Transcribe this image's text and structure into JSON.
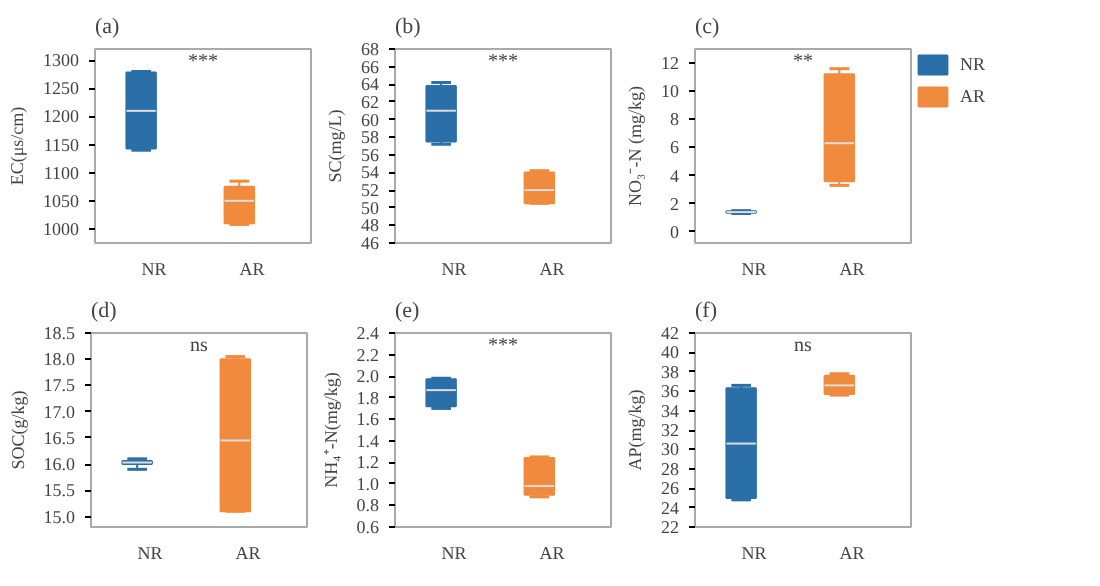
{
  "chart_data": [
    {
      "type": "box",
      "title": "(a)",
      "ylabel": "EC(μs/cm)",
      "categories": [
        "NR",
        "AR"
      ],
      "colors": [
        "#2a6fa8",
        "#f08a3c"
      ],
      "ylim": [
        975,
        1320
      ],
      "yticks": [
        1000,
        1050,
        1100,
        1150,
        1200,
        1250,
        1300
      ],
      "annotations": [
        "***"
      ],
      "boxes": [
        {
          "low": 1140,
          "q1": 1143,
          "median": 1210,
          "q3": 1278,
          "high": 1280
        },
        {
          "low": 1008,
          "q1": 1010,
          "median": 1050,
          "q3": 1075,
          "high": 1085
        }
      ]
    },
    {
      "type": "box",
      "title": "(b)",
      "ylabel": "SC(mg/L)",
      "categories": [
        "NR",
        "AR"
      ],
      "colors": [
        "#2a6fa8",
        "#f08a3c"
      ],
      "ylim": [
        46,
        68
      ],
      "yticks": [
        46,
        48,
        50,
        52,
        54,
        56,
        58,
        60,
        62,
        64,
        66,
        68
      ],
      "annotations": [
        "***"
      ],
      "boxes": [
        {
          "low": 57.2,
          "q1": 57.5,
          "median": 61,
          "q3": 63.8,
          "high": 64.2
        },
        {
          "low": 50.5,
          "q1": 50.5,
          "median": 52,
          "q3": 54,
          "high": 54.2
        }
      ]
    },
    {
      "type": "box",
      "title": "(c)",
      "ylabel": "NO₃⁻-N (mg/kg)",
      "categories": [
        "NR",
        "AR"
      ],
      "ylim": [
        -0.8,
        13
      ],
      "yticks": [
        0,
        2,
        4,
        6,
        8,
        10,
        12
      ],
      "legend": "right",
      "annotations": [
        "**"
      ],
      "series": [
        {
          "name": "NR",
          "color": "#2a6fa8",
          "boxes": [
            {
              "low": 1.3,
              "q1": 1.35,
              "median": 1.4,
              "q3": 1.45,
              "high": 1.5
            },
            null
          ]
        },
        {
          "name": "AR",
          "color": "#f08a3c",
          "boxes": [
            null,
            {
              "low": 3.3,
              "q1": 3.6,
              "median": 6.3,
              "q3": 11.2,
              "high": 11.6
            }
          ]
        }
      ]
    },
    {
      "type": "box",
      "title": "(d)",
      "ylabel": "SOC(g/kg)",
      "categories": [
        "NR",
        "AR"
      ],
      "colors": [
        "#2a6fa8",
        "#f08a3c"
      ],
      "ylim": [
        14.8,
        18.5
      ],
      "yticks": [
        {
          "value": 15,
          "label": "15.0"
        },
        15.5,
        {
          "value": 16,
          "label": "16.0"
        },
        16.5,
        {
          "value": 17,
          "label": "17.0"
        },
        17.5,
        {
          "value": 18,
          "label": "18.0"
        },
        18.5
      ],
      "annotations": [
        "ns"
      ],
      "boxes": [
        {
          "low": 15.9,
          "q1": 16.0,
          "median": 16.03,
          "q3": 16.06,
          "high": 16.1
        },
        {
          "low": 15.1,
          "q1": 15.1,
          "median": 16.45,
          "q3": 18.0,
          "high": 18.05
        }
      ]
    },
    {
      "type": "box",
      "title": "(e)",
      "ylabel": "NH₄⁺-N(mg/kg)",
      "categories": [
        "NR",
        "AR"
      ],
      "colors": [
        "#2a6fa8",
        "#f08a3c"
      ],
      "ylim": [
        0.6,
        2.4
      ],
      "yticks": [
        0.6,
        0.8,
        {
          "value": 1,
          "label": "1.0"
        },
        1.2,
        1.4,
        1.6,
        1.8,
        {
          "value": 2,
          "label": "2.0"
        },
        2.2,
        2.4
      ],
      "annotations": [
        "***"
      ],
      "boxes": [
        {
          "low": 1.7,
          "q1": 1.72,
          "median": 1.87,
          "q3": 1.97,
          "high": 1.98
        },
        {
          "low": 0.88,
          "q1": 0.9,
          "median": 0.98,
          "q3": 1.24,
          "high": 1.25
        }
      ]
    },
    {
      "type": "box",
      "title": "(f)",
      "ylabel": "AP(mg/kg)",
      "categories": [
        "NR",
        "AR"
      ],
      "colors": [
        "#2a6fa8",
        "#f08a3c"
      ],
      "ylim": [
        22,
        42
      ],
      "yticks": [
        22,
        24,
        26,
        28,
        30,
        32,
        34,
        36,
        38,
        40,
        42
      ],
      "annotations": [
        "ns"
      ],
      "boxes": [
        {
          "low": 24.8,
          "q1": 25,
          "median": 30.6,
          "q3": 36.3,
          "high": 36.6
        },
        {
          "low": 35.6,
          "q1": 35.7,
          "median": 36.6,
          "q3": 37.6,
          "high": 37.8
        }
      ]
    }
  ]
}
